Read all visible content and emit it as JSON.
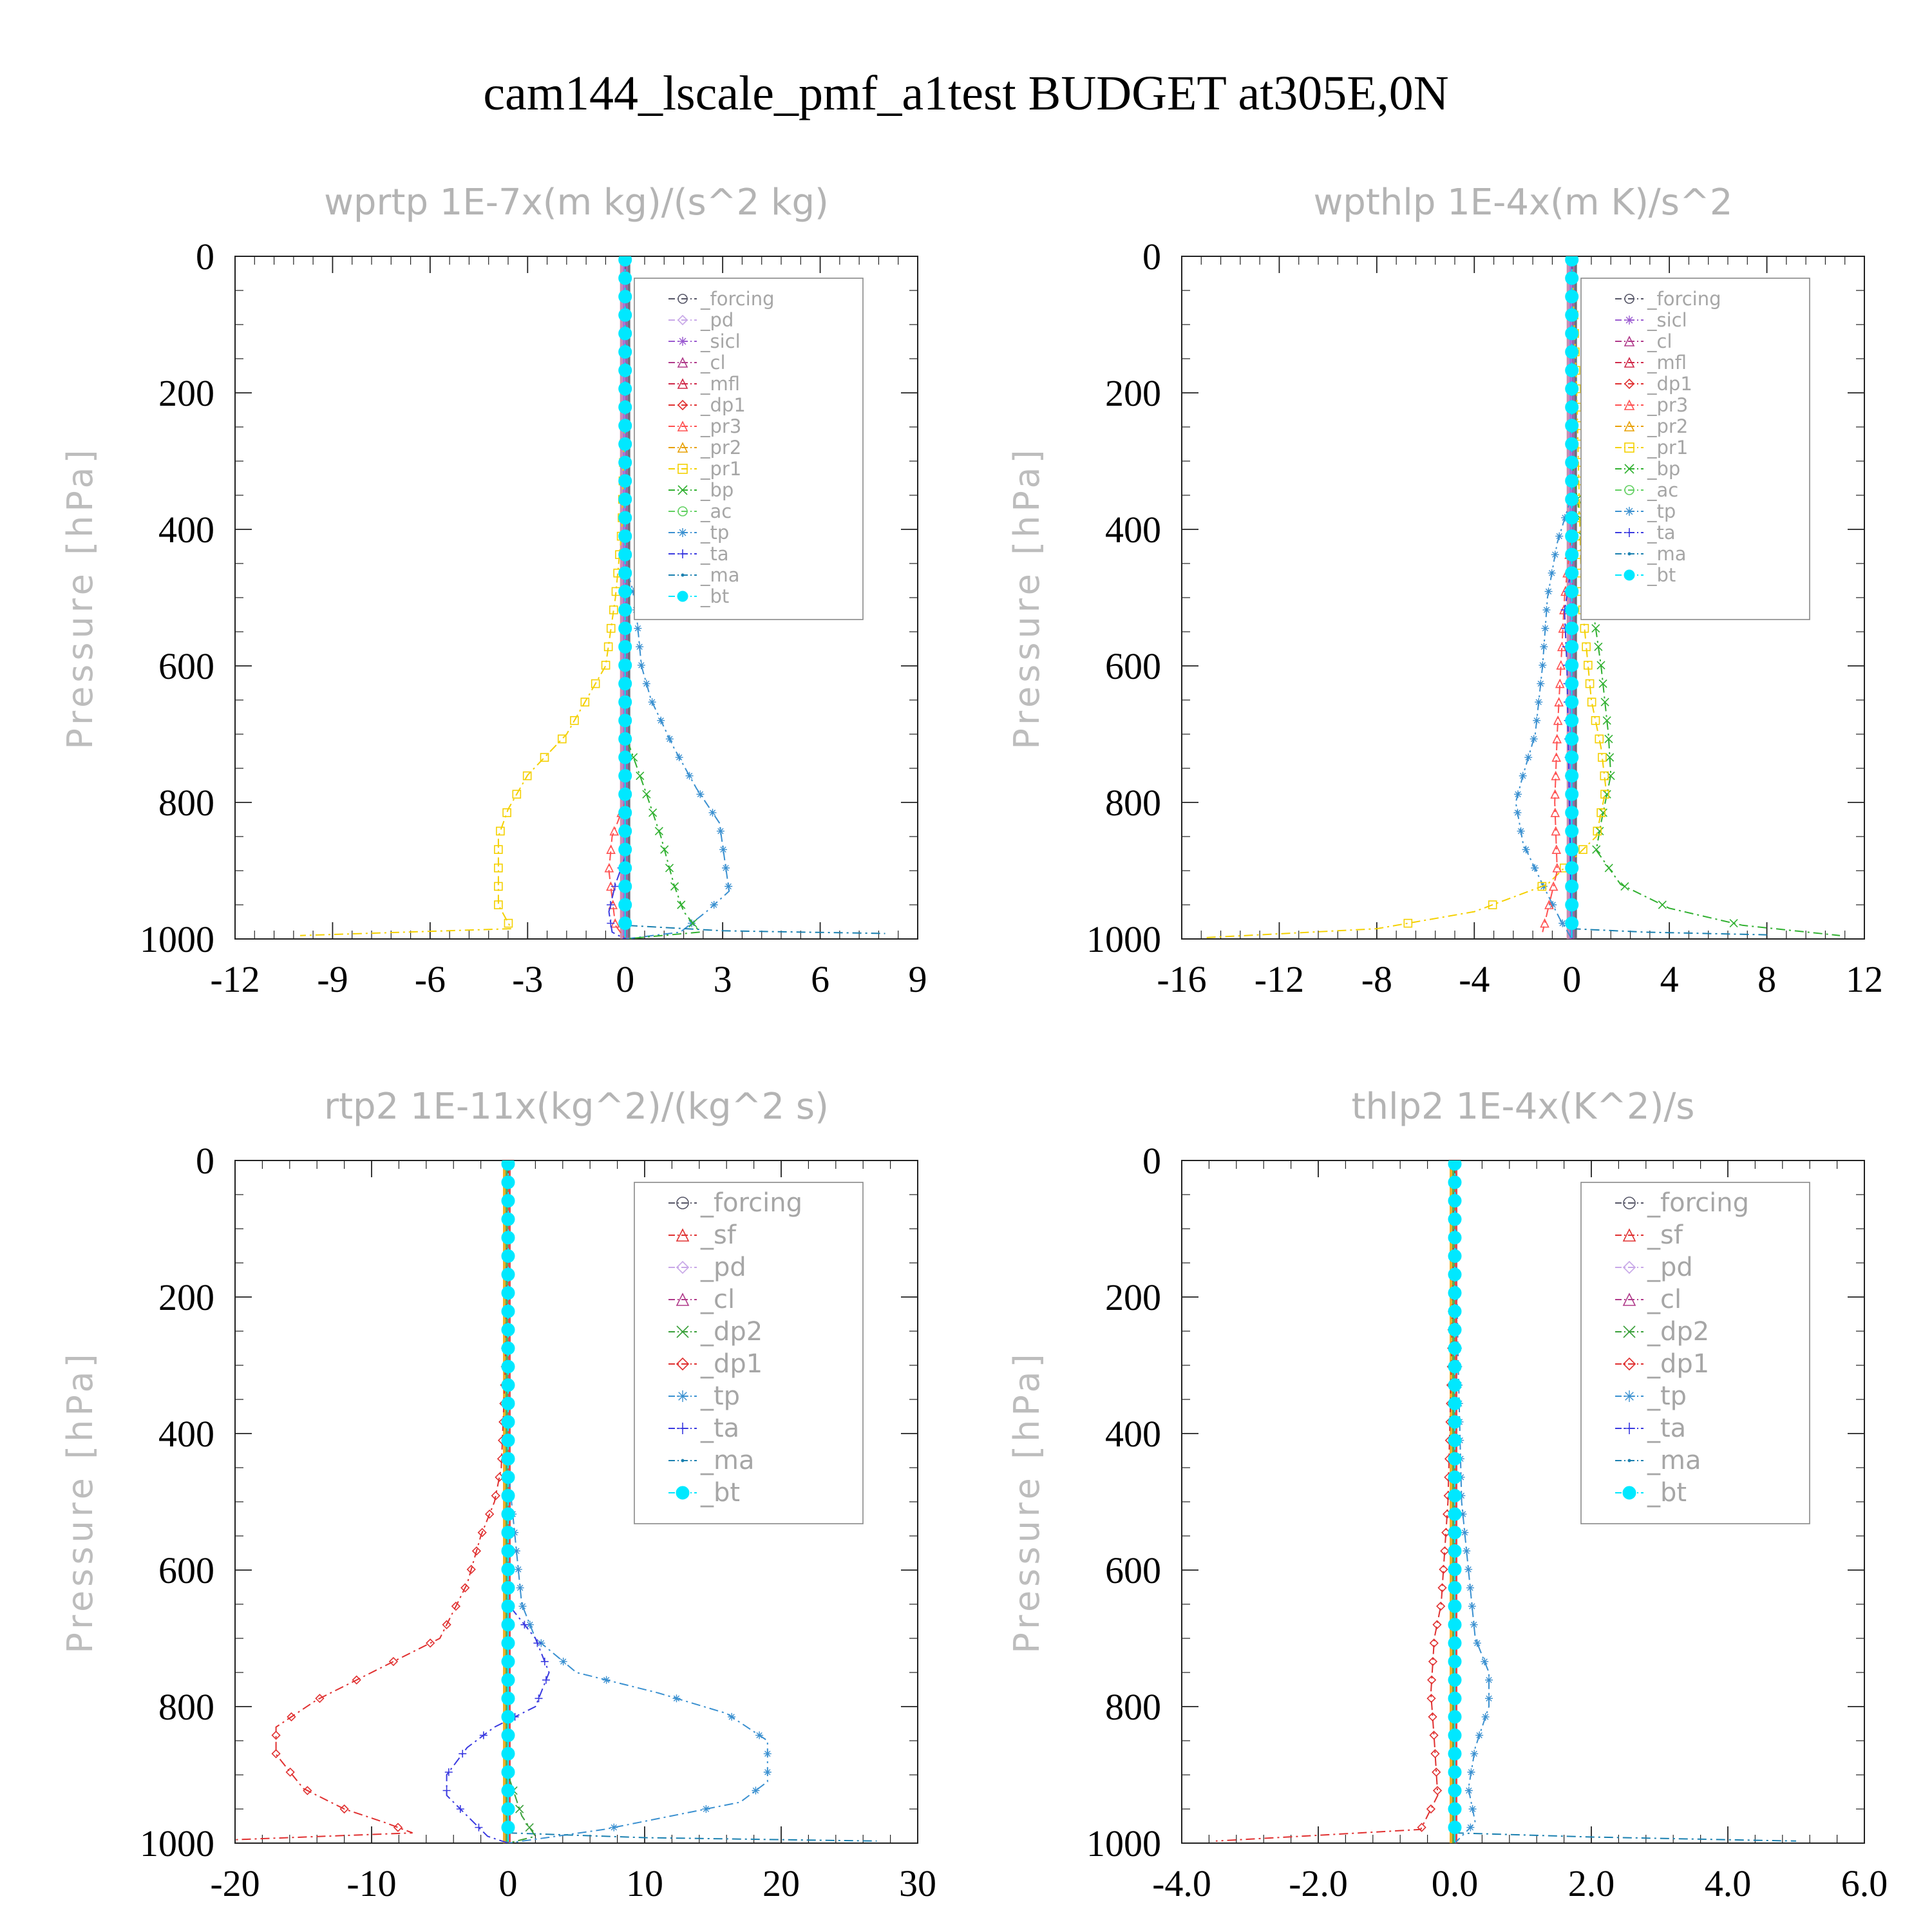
{
  "figure": {
    "title": "cam144_lscale_pmf_a1test  BUDGET at305E,0N"
  },
  "colors": {
    "_forcing": "#555566",
    "_pd": "#c8a8e8",
    "_sicl": "#9a5ad0",
    "_cl": "#b03a8a",
    "_mfl": "#d02848",
    "_dp1": "#e03030",
    "_pr3": "#ff5050",
    "_pr2": "#e8a000",
    "_pr1": "#f4d000",
    "_bp": "#30b030",
    "_ac": "#60d060",
    "_tp": "#3a90d0",
    "_ta": "#3a3ae0",
    "_ma": "#1a80b0",
    "_bt": "#00e8ff",
    "_sf": "#e03030",
    "_dp2": "#3aa03a"
  },
  "chart_data": [
    {
      "type": "line",
      "title": "wprtp  1E-7x(m kg)/(s^2 kg)",
      "ylabel": "Pressure [hPa]",
      "xlim": [
        -12,
        9
      ],
      "ylim": [
        1000,
        0
      ],
      "xticks": [
        "-12",
        "-9",
        "-6",
        "-3",
        "0",
        "3",
        "6",
        "9"
      ],
      "yticks": [
        "0",
        "200",
        "400",
        "600",
        "800",
        "1000"
      ],
      "legend": [
        "_forcing",
        "_pd",
        "_sicl",
        "_cl",
        "_mfl",
        "_dp1",
        "_pr3",
        "_pr2",
        "_pr1",
        "_bp",
        "_ac",
        "_tp",
        "_ta",
        "_ma",
        "_bt"
      ],
      "legend_position": "top-right",
      "series": [
        {
          "key": "_pr1",
          "points": [
            [
              0,
              0
            ],
            [
              0,
              200
            ],
            [
              -0.1,
              400
            ],
            [
              -0.3,
              500
            ],
            [
              -0.6,
              600
            ],
            [
              -1.2,
              650
            ],
            [
              -1.8,
              700
            ],
            [
              -3,
              760
            ],
            [
              -3.6,
              810
            ],
            [
              -3.9,
              850
            ],
            [
              -3.9,
              950
            ],
            [
              -3.5,
              985
            ],
            [
              -10,
              995
            ]
          ]
        },
        {
          "key": "_tp",
          "points": [
            [
              0,
              0
            ],
            [
              0,
              450
            ],
            [
              0.3,
              500
            ],
            [
              0.5,
              600
            ],
            [
              0.8,
              650
            ],
            [
              1.5,
              720
            ],
            [
              2.2,
              780
            ],
            [
              2.9,
              830
            ],
            [
              3.2,
              930
            ],
            [
              2.5,
              960
            ],
            [
              1.7,
              990
            ],
            [
              0,
              1000
            ]
          ]
        },
        {
          "key": "_bp",
          "points": [
            [
              0,
              0
            ],
            [
              0,
              700
            ],
            [
              0.6,
              780
            ],
            [
              1.1,
              850
            ],
            [
              1.5,
              920
            ],
            [
              1.8,
              960
            ],
            [
              2.3,
              990
            ],
            [
              0,
              1000
            ]
          ]
        },
        {
          "key": "_pr3",
          "points": [
            [
              0,
              0
            ],
            [
              0,
              800
            ],
            [
              -0.4,
              850
            ],
            [
              -0.5,
              900
            ],
            [
              -0.3,
              980
            ],
            [
              0,
              1000
            ]
          ]
        },
        {
          "key": "_ta",
          "points": [
            [
              0,
              0
            ],
            [
              0,
              880
            ],
            [
              -0.3,
              920
            ],
            [
              -0.5,
              960
            ],
            [
              -0.4,
              990
            ],
            [
              0,
              1000
            ]
          ]
        },
        {
          "key": "_ma",
          "points": [
            [
              0,
              0
            ],
            [
              0,
              980
            ],
            [
              3,
              988
            ],
            [
              8,
              992
            ]
          ]
        },
        {
          "key": "_forcing",
          "points": [
            [
              0,
              0
            ],
            [
              0,
              1000
            ]
          ]
        },
        {
          "key": "_bt",
          "points": [
            [
              0,
              0
            ],
            [
              0,
              1000
            ]
          ]
        }
      ]
    },
    {
      "type": "line",
      "title": "wpthlp  1E-4x(m K)/s^2",
      "ylabel": "Pressure [hPa]",
      "xlim": [
        -16,
        12
      ],
      "ylim": [
        1000,
        0
      ],
      "xticks": [
        "-16",
        "-12",
        "-8",
        "-4",
        "0",
        "4",
        "8",
        "12"
      ],
      "yticks": [
        "0",
        "200",
        "400",
        "600",
        "800",
        "1000"
      ],
      "legend": [
        "_forcing",
        "_sicl",
        "_cl",
        "_mfl",
        "_dp1",
        "_pr3",
        "_pr2",
        "_pr1",
        "_bp",
        "_ac",
        "_tp",
        "_ta",
        "_ma",
        "_bt"
      ],
      "legend_position": "top-right",
      "series": [
        {
          "key": "_bp",
          "points": [
            [
              0,
              0
            ],
            [
              0,
              300
            ],
            [
              0.4,
              400
            ],
            [
              0.8,
              500
            ],
            [
              1.2,
              600
            ],
            [
              1.5,
              700
            ],
            [
              1.6,
              760
            ],
            [
              1.2,
              830
            ],
            [
              1,
              870
            ],
            [
              2,
              920
            ],
            [
              4,
              955
            ],
            [
              7,
              980
            ],
            [
              11,
              995
            ]
          ]
        },
        {
          "key": "_tp",
          "points": [
            [
              0,
              0
            ],
            [
              0,
              350
            ],
            [
              -0.6,
              420
            ],
            [
              -1,
              500
            ],
            [
              -1.2,
              600
            ],
            [
              -1.5,
              700
            ],
            [
              -2,
              760
            ],
            [
              -2.3,
              800
            ],
            [
              -2,
              860
            ],
            [
              -1.2,
              920
            ],
            [
              -0.5,
              970
            ],
            [
              0,
              1000
            ]
          ]
        },
        {
          "key": "_pr1",
          "points": [
            [
              0,
              0
            ],
            [
              0.2,
              200
            ],
            [
              0.4,
              500
            ],
            [
              0.8,
              650
            ],
            [
              1.2,
              720
            ],
            [
              1.4,
              780
            ],
            [
              1,
              850
            ],
            [
              -1,
              920
            ],
            [
              -4,
              960
            ],
            [
              -8,
              985
            ],
            [
              -15,
              998
            ]
          ]
        },
        {
          "key": "_pr3",
          "points": [
            [
              0,
              0
            ],
            [
              0,
              400
            ],
            [
              -0.3,
              500
            ],
            [
              -0.6,
              700
            ],
            [
              -0.7,
              800
            ],
            [
              -0.6,
              900
            ],
            [
              -1.2,
              990
            ]
          ]
        },
        {
          "key": "_ta",
          "points": [
            [
              0,
              0
            ],
            [
              0,
              450
            ],
            [
              -0.3,
              520
            ],
            [
              -0.2,
              600
            ],
            [
              0,
              1000
            ]
          ]
        },
        {
          "key": "_ma",
          "points": [
            [
              0,
              0
            ],
            [
              0,
              985
            ],
            [
              3,
              990
            ],
            [
              8,
              994
            ]
          ]
        },
        {
          "key": "_forcing",
          "points": [
            [
              0,
              0
            ],
            [
              0,
              1000
            ]
          ]
        },
        {
          "key": "_bt",
          "points": [
            [
              0,
              0
            ],
            [
              0,
              1000
            ]
          ]
        }
      ]
    },
    {
      "type": "line",
      "title": "rtp2  1E-11x(kg^2)/(kg^2 s)",
      "ylabel": "Pressure [hPa]",
      "xlim": [
        -20,
        30
      ],
      "ylim": [
        1000,
        0
      ],
      "xticks": [
        "-20",
        "-10",
        "0",
        "10",
        "20",
        "30"
      ],
      "yticks": [
        "0",
        "200",
        "400",
        "600",
        "800",
        "1000"
      ],
      "legend": [
        "_forcing",
        "_sf",
        "_pd",
        "_cl",
        "_dp2",
        "_dp1",
        "_tp",
        "_ta",
        "_ma",
        "_bt"
      ],
      "legend_position": "top-right",
      "series": [
        {
          "key": "_dp1",
          "points": [
            [
              0,
              0
            ],
            [
              -0.2,
              300
            ],
            [
              -0.5,
              450
            ],
            [
              -1,
              500
            ],
            [
              -2,
              550
            ],
            [
              -3,
              620
            ],
            [
              -5,
              700
            ],
            [
              -8,
              730
            ],
            [
              -11,
              760
            ],
            [
              -14,
              790
            ],
            [
              -17,
              830
            ],
            [
              -17,
              870
            ],
            [
              -15,
              920
            ],
            [
              -12,
              950
            ],
            [
              -9,
              970
            ],
            [
              -7,
              985
            ],
            [
              -20,
              995
            ]
          ]
        },
        {
          "key": "_tp",
          "points": [
            [
              0,
              0
            ],
            [
              0,
              450
            ],
            [
              0.5,
              550
            ],
            [
              1,
              650
            ],
            [
              2,
              700
            ],
            [
              5,
              750
            ],
            [
              11,
              780
            ],
            [
              16,
              810
            ],
            [
              19,
              850
            ],
            [
              19,
              910
            ],
            [
              17,
              940
            ],
            [
              12,
              960
            ],
            [
              7,
              980
            ],
            [
              0,
              1000
            ]
          ]
        },
        {
          "key": "_ta",
          "points": [
            [
              0,
              0
            ],
            [
              0,
              650
            ],
            [
              2,
              700
            ],
            [
              3,
              750
            ],
            [
              2,
              800
            ],
            [
              -1,
              830
            ],
            [
              -3,
              860
            ],
            [
              -4.5,
              900
            ],
            [
              -4.5,
              930
            ],
            [
              -3,
              960
            ],
            [
              -1.5,
              990
            ],
            [
              0,
              1000
            ]
          ]
        },
        {
          "key": "_ma",
          "points": [
            [
              0,
              0
            ],
            [
              0,
              985
            ],
            [
              10,
              992
            ],
            [
              27,
              997
            ]
          ]
        },
        {
          "key": "_dp2",
          "points": [
            [
              0,
              0
            ],
            [
              0,
              900
            ],
            [
              1,
              960
            ],
            [
              2,
              990
            ],
            [
              0,
              1000
            ]
          ]
        },
        {
          "key": "_forcing",
          "points": [
            [
              0,
              0
            ],
            [
              0,
              1000
            ]
          ]
        },
        {
          "key": "_bt",
          "points": [
            [
              0,
              0
            ],
            [
              0,
              1000
            ]
          ]
        }
      ]
    },
    {
      "type": "line",
      "title": "thlp2  1E-4x(K^2)/s",
      "ylabel": "Pressure [hPa]",
      "xlim": [
        -4,
        6
      ],
      "ylim": [
        1000,
        0
      ],
      "xticks": [
        "-4.0",
        "-2.0",
        "0.0",
        "2.0",
        "4.0",
        "6.0"
      ],
      "yticks": [
        "0",
        "200",
        "400",
        "600",
        "800",
        "1000"
      ],
      "legend": [
        "_forcing",
        "_sf",
        "_pd",
        "_cl",
        "_dp2",
        "_dp1",
        "_tp",
        "_ta",
        "_ma",
        "_bt"
      ],
      "legend_position": "top-right",
      "series": [
        {
          "key": "_dp1",
          "points": [
            [
              0,
              0
            ],
            [
              -0.05,
              300
            ],
            [
              -0.1,
              500
            ],
            [
              -0.2,
              650
            ],
            [
              -0.3,
              700
            ],
            [
              -0.35,
              780
            ],
            [
              -0.3,
              850
            ],
            [
              -0.25,
              930
            ],
            [
              -0.5,
              980
            ],
            [
              -3.5,
              997
            ]
          ]
        },
        {
          "key": "_tp",
          "points": [
            [
              0,
              0
            ],
            [
              0.05,
              300
            ],
            [
              0.1,
              500
            ],
            [
              0.2,
              600
            ],
            [
              0.3,
              700
            ],
            [
              0.5,
              750
            ],
            [
              0.5,
              800
            ],
            [
              0.3,
              860
            ],
            [
              0.2,
              920
            ],
            [
              0.3,
              970
            ],
            [
              0,
              1000
            ]
          ]
        },
        {
          "key": "_ma",
          "points": [
            [
              0,
              0
            ],
            [
              0,
              985
            ],
            [
              2,
              991
            ],
            [
              5,
              997
            ]
          ]
        },
        {
          "key": "_ta",
          "points": [
            [
              0,
              0
            ],
            [
              0,
              1000
            ]
          ]
        },
        {
          "key": "_forcing",
          "points": [
            [
              0,
              0
            ],
            [
              0,
              1000
            ]
          ]
        },
        {
          "key": "_bt",
          "points": [
            [
              0,
              0
            ],
            [
              0,
              1000
            ]
          ]
        }
      ]
    }
  ]
}
